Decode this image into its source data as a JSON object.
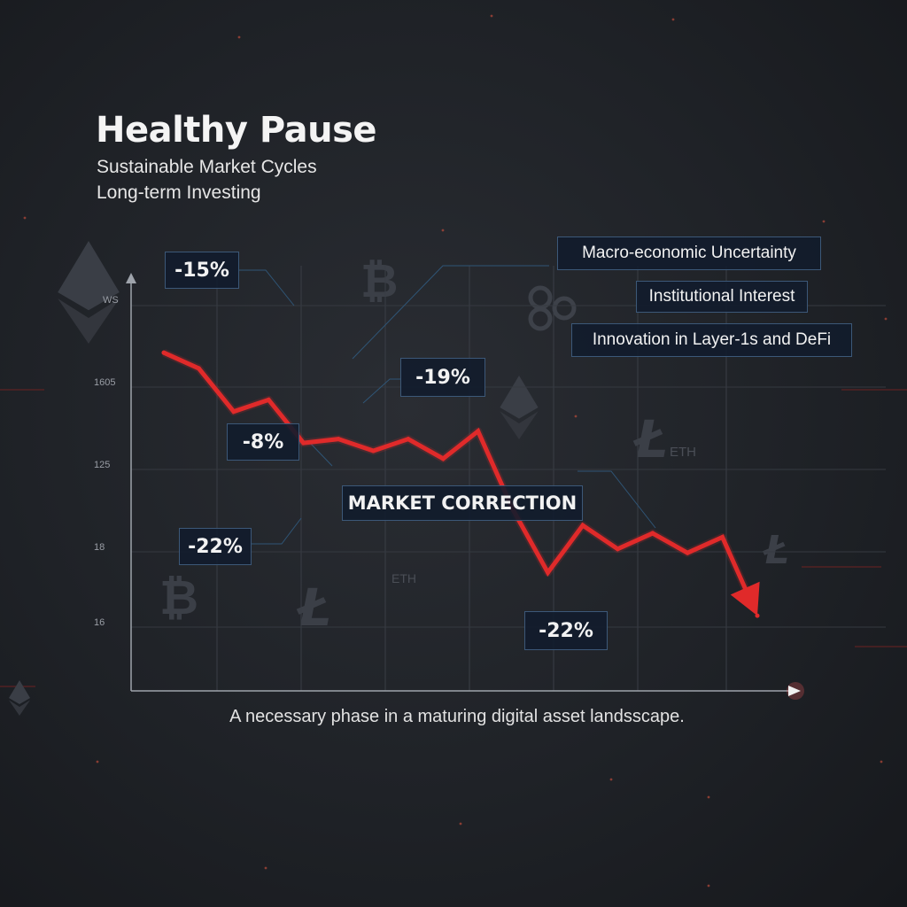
{
  "header": {
    "title": "Healthy Pause",
    "subtitles": [
      "Sustainable Market Cycles",
      "Long-term Investing"
    ]
  },
  "caption": "A necessary phase in a maturing digital asset landsscape.",
  "factors": [
    "Macro-economic Uncertainty",
    "Institutional Interest",
    "Innovation in Layer-1s and DeFi"
  ],
  "correction_label": "MARKET CORRECTION",
  "percent_labels": [
    "-15%",
    "-19%",
    "-8%",
    "-22%",
    "-22%"
  ],
  "decorations": {
    "icons": [
      "bitcoin-icon",
      "ripple-icon",
      "ethereum-icon",
      "litecoin-icon"
    ],
    "text_marks": [
      "ETH",
      "ETH",
      "WS"
    ]
  },
  "colors": {
    "line": "#e02a2a",
    "background": "#1f2227",
    "box_border": "#3c5878",
    "axis": "#9ea3ab"
  },
  "chart_data": {
    "type": "line",
    "title": "Healthy Pause",
    "xlabel": "",
    "ylabel": "",
    "y_ticks": [
      "WS",
      "1605",
      "125",
      "18",
      "16"
    ],
    "grid": true,
    "series": [
      {
        "values": [
          16,
          14,
          8.5,
          10,
          4.5,
          5,
          3.5,
          5,
          2.5,
          6,
          -4,
          -12,
          -6,
          -9,
          -7,
          -9.5,
          -7.5,
          -17.5
        ]
      }
    ],
    "ylim": [
      -22,
      22
    ],
    "trend": "down"
  }
}
